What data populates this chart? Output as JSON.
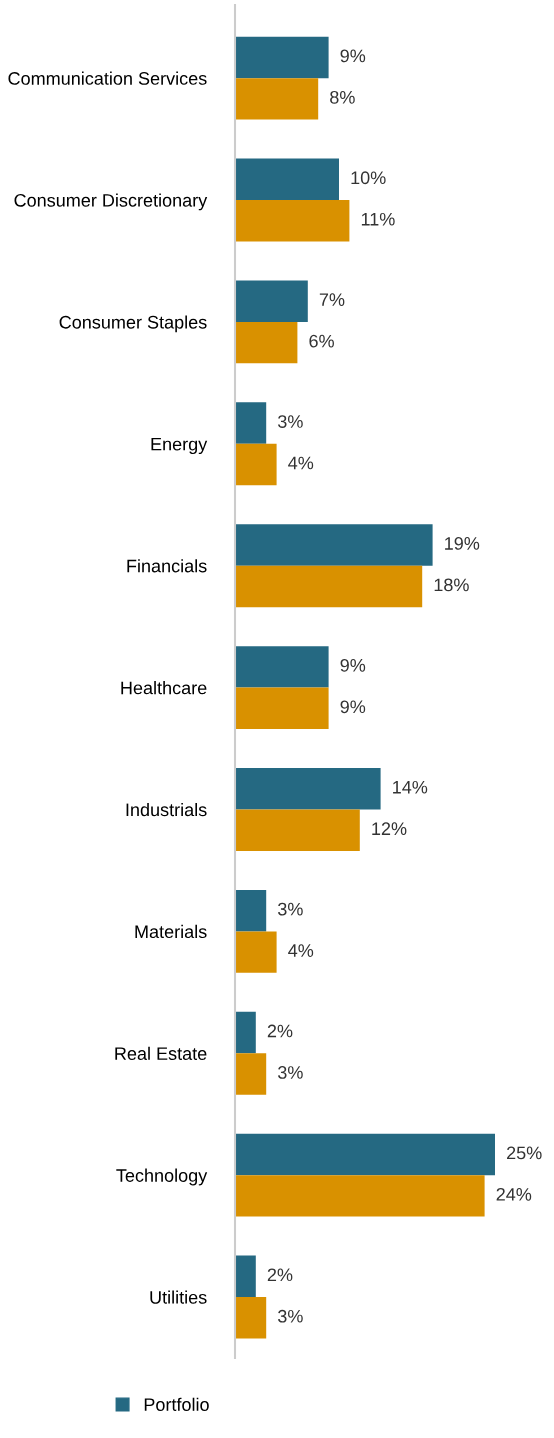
{
  "chart_data": {
    "type": "bar",
    "orientation": "horizontal",
    "categories": [
      "Communication Services",
      "Consumer Discretionary",
      "Consumer Staples",
      "Energy",
      "Financials",
      "Healthcare",
      "Industrials",
      "Materials",
      "Real Estate",
      "Technology",
      "Utilities"
    ],
    "series": [
      {
        "name": "Portfolio",
        "color": "#256982",
        "values": [
          9,
          10,
          7,
          3,
          19,
          9,
          14,
          3,
          2,
          25,
          2
        ],
        "value_labels": [
          "9%",
          "10%",
          "7%",
          "3%",
          "19%",
          "9%",
          "14%",
          "3%",
          "2%",
          "25%",
          "2%"
        ]
      },
      {
        "color": "#d99100",
        "values": [
          8,
          11,
          6,
          4,
          18,
          9,
          12,
          4,
          3,
          24,
          3
        ],
        "value_labels": [
          "8%",
          "11%",
          "6%",
          "4%",
          "18%",
          "9%",
          "12%",
          "4%",
          "3%",
          "24%",
          "3%"
        ]
      }
    ],
    "legend": "bottom"
  }
}
